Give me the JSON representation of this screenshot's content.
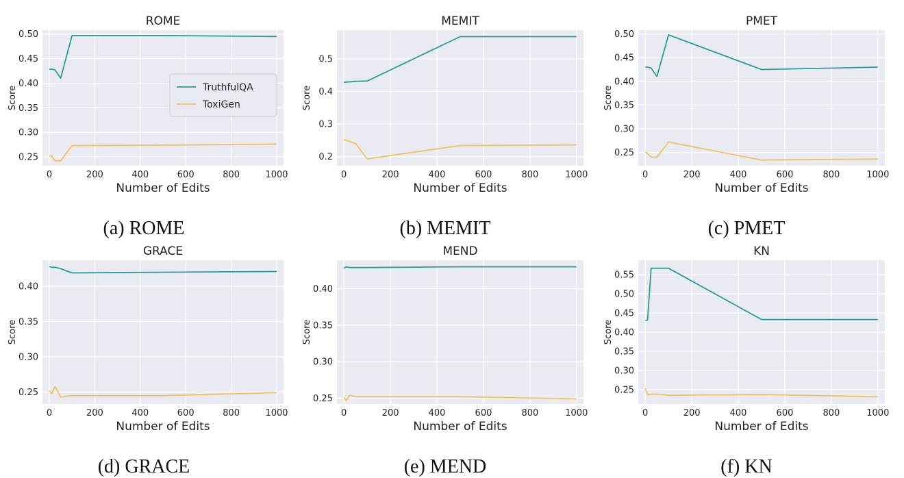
{
  "colors": {
    "truthfulqa": "#2a9d8f",
    "toxigen": "#f0c060",
    "background": "#eaeaf2",
    "grid": "#ffffff"
  },
  "chart_data": [
    {
      "type": "line",
      "title": "ROME",
      "caption": "(a) ROME",
      "xlabel": "Number of Edits",
      "ylabel": "Score",
      "xlim": [
        -30,
        1030
      ],
      "ylim": [
        0.232,
        0.508
      ],
      "xticks": [
        0,
        200,
        400,
        600,
        800,
        1000
      ],
      "yticks": [
        0.25,
        0.3,
        0.35,
        0.4,
        0.45,
        0.5
      ],
      "ytick_labels": [
        "0.25",
        "0.30",
        "0.35",
        "0.40",
        "0.45",
        "0.50"
      ],
      "legend": {
        "position": "center-right",
        "entries": [
          "TruthfulQA",
          "ToxiGen"
        ]
      },
      "grid": true,
      "series": [
        {
          "name": "TruthfulQA",
          "x": [
            0,
            10,
            25,
            50,
            100,
            500,
            1000
          ],
          "y": [
            0.428,
            0.429,
            0.427,
            0.41,
            0.497,
            0.497,
            0.495
          ]
        },
        {
          "name": "ToxiGen",
          "x": [
            0,
            10,
            25,
            50,
            100,
            500,
            1000
          ],
          "y": [
            0.252,
            0.252,
            0.242,
            0.242,
            0.273,
            0.274,
            0.276
          ]
        }
      ]
    },
    {
      "type": "line",
      "title": "MEMIT",
      "caption": "(b) MEMIT",
      "xlabel": "Number of Edits",
      "ylabel": "Score",
      "xlim": [
        -30,
        1030
      ],
      "ylim": [
        0.172,
        0.588
      ],
      "xticks": [
        0,
        200,
        400,
        600,
        800,
        1000
      ],
      "yticks": [
        0.2,
        0.3,
        0.4,
        0.5
      ],
      "ytick_labels": [
        "0.2",
        "0.3",
        "0.4",
        "0.5"
      ],
      "grid": true,
      "series": [
        {
          "name": "TruthfulQA",
          "x": [
            0,
            50,
            100,
            500,
            1000
          ],
          "y": [
            0.428,
            0.431,
            0.432,
            0.568,
            0.568
          ]
        },
        {
          "name": "ToxiGen",
          "x": [
            0,
            50,
            100,
            500,
            1000
          ],
          "y": [
            0.252,
            0.24,
            0.193,
            0.234,
            0.236
          ]
        }
      ]
    },
    {
      "type": "line",
      "title": "PMET",
      "caption": "(c) PMET",
      "xlabel": "Number of Edits",
      "ylabel": "Score",
      "xlim": [
        -30,
        1030
      ],
      "ylim": [
        0.222,
        0.508
      ],
      "xticks": [
        0,
        200,
        400,
        600,
        800,
        1000
      ],
      "yticks": [
        0.25,
        0.3,
        0.35,
        0.4,
        0.45,
        0.5
      ],
      "ytick_labels": [
        "0.25",
        "0.30",
        "0.35",
        "0.40",
        "0.45",
        "0.50"
      ],
      "grid": true,
      "series": [
        {
          "name": "TruthfulQA",
          "x": [
            0,
            10,
            25,
            50,
            100,
            500,
            1000
          ],
          "y": [
            0.43,
            0.43,
            0.428,
            0.41,
            0.498,
            0.425,
            0.43
          ]
        },
        {
          "name": "ToxiGen",
          "x": [
            0,
            10,
            25,
            50,
            100,
            500,
            1000
          ],
          "y": [
            0.251,
            0.248,
            0.24,
            0.24,
            0.272,
            0.234,
            0.236
          ]
        }
      ]
    },
    {
      "type": "line",
      "title": "GRACE",
      "caption": "(d) GRACE",
      "xlabel": "Number of Edits",
      "ylabel": "Score",
      "xlim": [
        -30,
        1030
      ],
      "ylim": [
        0.233,
        0.437
      ],
      "xticks": [
        0,
        200,
        400,
        600,
        800,
        1000
      ],
      "yticks": [
        0.25,
        0.3,
        0.35,
        0.4
      ],
      "ytick_labels": [
        "0.25",
        "0.30",
        "0.35",
        "0.40"
      ],
      "grid": true,
      "series": [
        {
          "name": "TruthfulQA",
          "x": [
            0,
            10,
            25,
            50,
            100,
            500,
            1000
          ],
          "y": [
            0.428,
            0.427,
            0.427,
            0.425,
            0.419,
            0.42,
            0.421
          ]
        },
        {
          "name": "ToxiGen",
          "x": [
            0,
            10,
            25,
            50,
            100,
            500,
            1000
          ],
          "y": [
            0.252,
            0.248,
            0.258,
            0.243,
            0.245,
            0.245,
            0.249
          ]
        }
      ]
    },
    {
      "type": "line",
      "title": "MEND",
      "caption": "(e) MEND",
      "xlabel": "Number of Edits",
      "ylabel": "Score",
      "xlim": [
        -30,
        1030
      ],
      "ylim": [
        0.242,
        0.439
      ],
      "xticks": [
        0,
        200,
        400,
        600,
        800,
        1000
      ],
      "yticks": [
        0.25,
        0.3,
        0.35,
        0.4
      ],
      "ytick_labels": [
        "0.25",
        "0.30",
        "0.35",
        "0.40"
      ],
      "grid": true,
      "series": [
        {
          "name": "TruthfulQA",
          "x": [
            0,
            10,
            25,
            50,
            100,
            500,
            1000
          ],
          "y": [
            0.428,
            0.43,
            0.429,
            0.429,
            0.429,
            0.43,
            0.43
          ]
        },
        {
          "name": "ToxiGen",
          "x": [
            0,
            10,
            25,
            50,
            100,
            500,
            1000
          ],
          "y": [
            0.251,
            0.247,
            0.254,
            0.252,
            0.252,
            0.252,
            0.249
          ]
        }
      ]
    },
    {
      "type": "line",
      "title": "KN",
      "caption": "(f) KN",
      "xlabel": "Number of Edits",
      "ylabel": "Score",
      "xlim": [
        -30,
        1030
      ],
      "ylim": [
        0.212,
        0.588
      ],
      "xticks": [
        0,
        200,
        400,
        600,
        800,
        1000
      ],
      "yticks": [
        0.25,
        0.3,
        0.35,
        0.4,
        0.45,
        0.5,
        0.55
      ],
      "ytick_labels": [
        "0.25",
        "0.30",
        "0.35",
        "0.40",
        "0.45",
        "0.50",
        "0.55"
      ],
      "grid": true,
      "series": [
        {
          "name": "TruthfulQA",
          "x": [
            0,
            10,
            25,
            50,
            100,
            500,
            1000
          ],
          "y": [
            0.43,
            0.432,
            0.567,
            0.567,
            0.567,
            0.433,
            0.433
          ]
        },
        {
          "name": "ToxiGen",
          "x": [
            0,
            10,
            25,
            50,
            100,
            500,
            1000
          ],
          "y": [
            0.253,
            0.236,
            0.238,
            0.238,
            0.235,
            0.237,
            0.231
          ]
        }
      ]
    }
  ]
}
